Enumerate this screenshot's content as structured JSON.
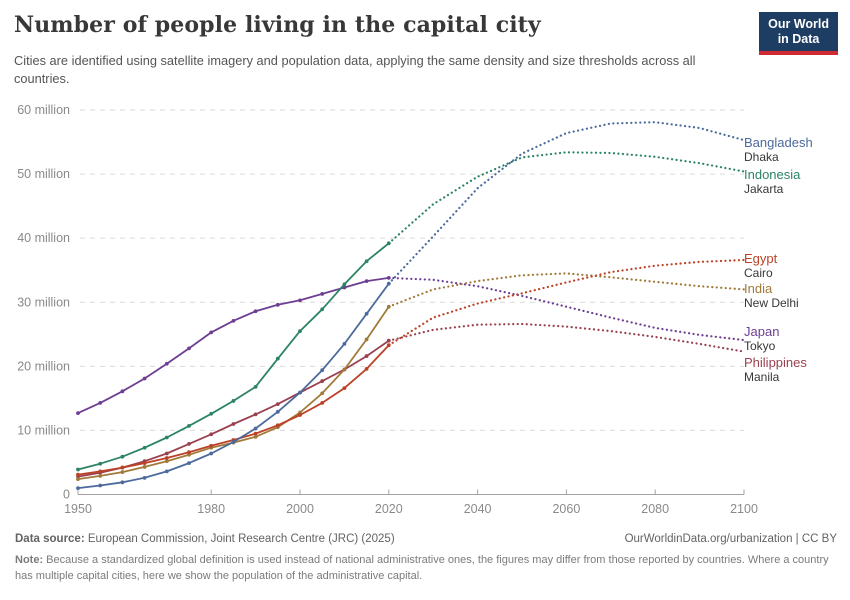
{
  "header": {
    "title": "Number of people living in the capital city",
    "subtitle": "Cities are identified using satellite imagery and population data, applying the same density and size thresholds across all countries.",
    "logo": {
      "line1": "Our World",
      "line2": "in Data"
    }
  },
  "footer": {
    "source_label": "Data source:",
    "source_text": " European Commission, Joint Research Centre (JRC) (2025)",
    "link_text": "OurWorldinData.org/urbanization | CC BY",
    "note_label": "Note:",
    "note_text": " Because a standardized global definition is used instead of national administrative ones, the figures may differ from those reported by countries. Where a country has multiple capital cities, here we show the population of the administrative capital."
  },
  "chart_data": {
    "type": "line",
    "title": "Number of people living in the capital city",
    "unit": "million people",
    "x_range": [
      1950,
      2100
    ],
    "y_range": [
      0,
      60
    ],
    "grid": "horizontal-dashed",
    "legend_position": "right-of-lines",
    "projection_style": "dotted-after-2020",
    "x_ticks": [
      1950,
      1980,
      2000,
      2020,
      2040,
      2060,
      2080,
      2100
    ],
    "y_ticks": [
      {
        "value": 0,
        "label": "0"
      },
      {
        "value": 10,
        "label": "10 million"
      },
      {
        "value": 20,
        "label": "20 million"
      },
      {
        "value": 30,
        "label": "30 million"
      },
      {
        "value": 40,
        "label": "40 million"
      },
      {
        "value": 50,
        "label": "50 million"
      },
      {
        "value": 60,
        "label": "60 million"
      }
    ],
    "observed_years": [
      1950,
      1955,
      1960,
      1965,
      1970,
      1975,
      1980,
      1985,
      1990,
      1995,
      2000,
      2005,
      2010,
      2015,
      2020
    ],
    "projected_years": [
      2020,
      2030,
      2040,
      2050,
      2060,
      2070,
      2080,
      2090,
      2100
    ],
    "series": [
      {
        "country": "Bangladesh",
        "city": "Dhaka",
        "color": "#4C6A9C",
        "observed": [
          1.0,
          1.4,
          1.9,
          2.6,
          3.6,
          4.9,
          6.4,
          8.2,
          10.3,
          12.9,
          15.9,
          19.4,
          23.5,
          28.2,
          32.9
        ],
        "projected": [
          32.9,
          40.3,
          47.8,
          53.2,
          56.4,
          57.9,
          58.1,
          57.2,
          55.3
        ]
      },
      {
        "country": "Indonesia",
        "city": "Jakarta",
        "color": "#2C8465",
        "observed": [
          3.9,
          4.8,
          5.9,
          7.3,
          8.9,
          10.7,
          12.6,
          14.6,
          16.8,
          21.2,
          25.5,
          28.9,
          32.8,
          36.4,
          39.2
        ],
        "projected": [
          39.2,
          45.3,
          49.6,
          52.6,
          53.4,
          53.3,
          52.7,
          51.7,
          50.4
        ]
      },
      {
        "country": "Egypt",
        "city": "Cairo",
        "color": "#BC4126",
        "observed": [
          3.1,
          3.6,
          4.2,
          4.9,
          5.7,
          6.6,
          7.6,
          8.5,
          9.5,
          10.8,
          12.4,
          14.3,
          16.6,
          19.6,
          23.3
        ],
        "projected": [
          23.3,
          27.6,
          29.8,
          31.4,
          33.1,
          34.7,
          35.7,
          36.3,
          36.6
        ]
      },
      {
        "country": "India",
        "city": "New Delhi",
        "color": "#A17A39",
        "observed": [
          2.4,
          2.9,
          3.5,
          4.3,
          5.2,
          6.2,
          7.3,
          8.1,
          9.0,
          10.5,
          12.8,
          15.8,
          19.5,
          24.2,
          29.3
        ],
        "projected": [
          29.3,
          32.0,
          33.3,
          34.2,
          34.5,
          33.9,
          33.2,
          32.5,
          32.0
        ]
      },
      {
        "country": "Japan",
        "city": "Tokyo",
        "color": "#6D3E91",
        "observed": [
          12.7,
          14.3,
          16.1,
          18.1,
          20.4,
          22.8,
          25.3,
          27.1,
          28.6,
          29.6,
          30.3,
          31.3,
          32.3,
          33.3,
          33.8
        ],
        "projected": [
          33.8,
          33.5,
          32.5,
          31.0,
          29.3,
          27.6,
          26.0,
          24.9,
          24.1
        ]
      },
      {
        "country": "Philippines",
        "city": "Manila",
        "color": "#9A4050",
        "observed": [
          2.8,
          3.4,
          4.2,
          5.2,
          6.4,
          7.9,
          9.4,
          11.0,
          12.5,
          14.1,
          15.9,
          17.7,
          19.5,
          21.6,
          24.0
        ],
        "projected": [
          24.0,
          25.7,
          26.5,
          26.6,
          26.2,
          25.5,
          24.6,
          23.5,
          22.3
        ]
      }
    ]
  }
}
